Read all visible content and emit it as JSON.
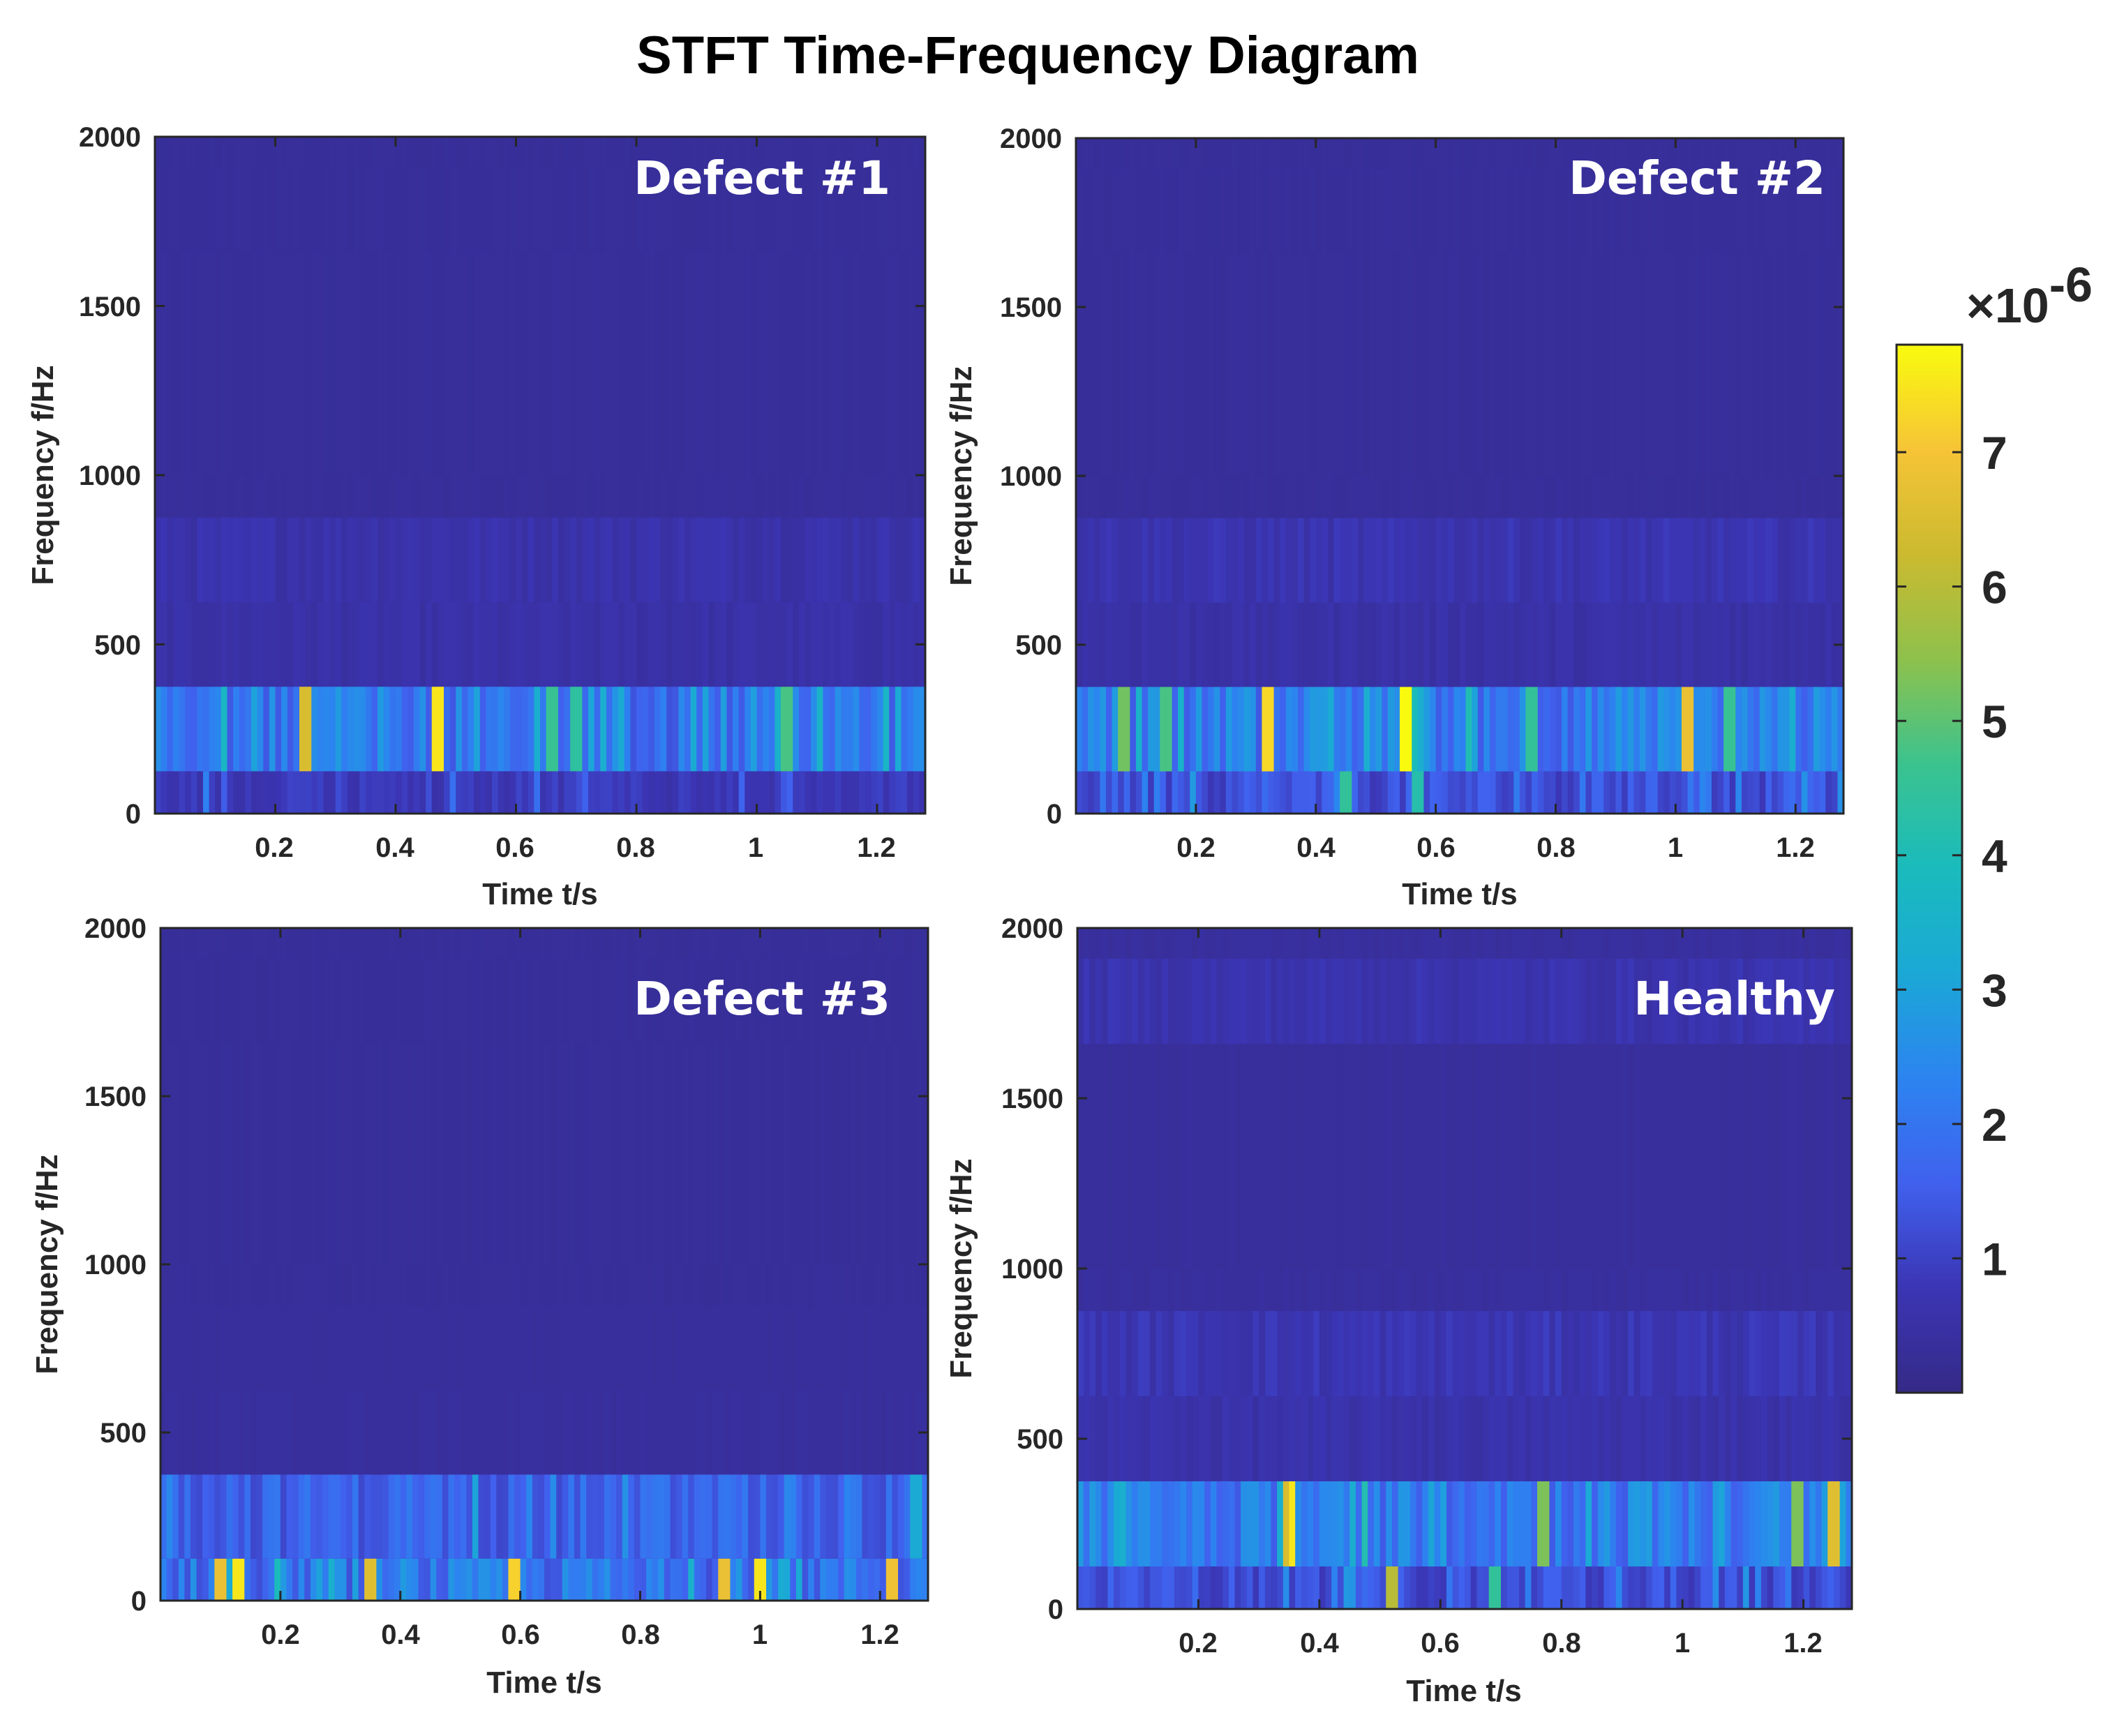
{
  "title": "STFT Time-Frequency Diagram",
  "chart_data": [
    {
      "type": "heatmap",
      "panel_label": "Defect #1",
      "xlabel": "Time t/s",
      "ylabel": "Frequency f/Hz",
      "xlim": [
        0,
        1.28
      ],
      "ylim": [
        0,
        2000
      ],
      "xticks": [
        "0.2",
        "0.4",
        "0.6",
        "0.8",
        "1",
        "1.2"
      ],
      "yticks": [
        "0",
        "500",
        "1000",
        "1500",
        "2000"
      ],
      "hot_spots": [
        {
          "t": 0.25,
          "band": 1,
          "level": 6.5
        },
        {
          "t": 0.47,
          "band": 1,
          "level": 7.5
        },
        {
          "t": 0.465,
          "band": 1,
          "level": 5.5
        },
        {
          "t": 0.66,
          "band": 1,
          "level": 4.6
        },
        {
          "t": 0.7,
          "band": 1,
          "level": 4.4
        },
        {
          "t": 1.05,
          "band": 1,
          "level": 4.8
        }
      ]
    },
    {
      "type": "heatmap",
      "panel_label": "Defect #2",
      "xlabel": "Time t/s",
      "ylabel": "Frequency f/Hz",
      "xlim": [
        0,
        1.28
      ],
      "ylim": [
        0,
        2000
      ],
      "xticks": [
        "0.2",
        "0.4",
        "0.6",
        "0.8",
        "1",
        "1.2"
      ],
      "yticks": [
        "0",
        "500",
        "1000",
        "1500",
        "2000"
      ],
      "hot_spots": [
        {
          "t": 0.32,
          "band": 1,
          "level": 7.3
        },
        {
          "t": 0.55,
          "band": 1,
          "level": 7.8
        },
        {
          "t": 0.08,
          "band": 1,
          "level": 5.2
        },
        {
          "t": 0.15,
          "band": 1,
          "level": 4.8
        },
        {
          "t": 0.76,
          "band": 1,
          "level": 4.5
        },
        {
          "t": 1.02,
          "band": 1,
          "level": 6.8
        },
        {
          "t": 1.09,
          "band": 1,
          "level": 4.6
        },
        {
          "t": 0.45,
          "band": 0,
          "level": 4.5
        },
        {
          "t": 0.57,
          "band": 0,
          "level": 4.2
        }
      ]
    },
    {
      "type": "heatmap",
      "panel_label": "Defect #3",
      "xlabel": "Time t/s",
      "ylabel": "Frequency f/Hz",
      "xlim": [
        0,
        1.28
      ],
      "ylim": [
        0,
        2000
      ],
      "xticks": [
        "0.2",
        "0.4",
        "0.6",
        "0.8",
        "1",
        "1.2"
      ],
      "yticks": [
        "0",
        "500",
        "1000",
        "1500",
        "2000"
      ],
      "hot_spots": [
        {
          "t": 0.1,
          "band": 0,
          "level": 6.8
        },
        {
          "t": 0.13,
          "band": 0,
          "level": 7.5
        },
        {
          "t": 0.35,
          "band": 0,
          "level": 6.6
        },
        {
          "t": 0.59,
          "band": 0,
          "level": 7.2
        },
        {
          "t": 0.94,
          "band": 0,
          "level": 6.8
        },
        {
          "t": 1.0,
          "band": 0,
          "level": 7.5
        },
        {
          "t": 1.22,
          "band": 0,
          "level": 6.9
        },
        {
          "t": 1.26,
          "band": 1,
          "level": 3.2
        }
      ]
    },
    {
      "type": "heatmap",
      "panel_label": "Healthy",
      "xlabel": "Time t/s",
      "ylabel": "Frequency f/Hz",
      "xlim": [
        0,
        1.28
      ],
      "ylim": [
        0,
        2000
      ],
      "xticks": [
        "0.2",
        "0.4",
        "0.6",
        "0.8",
        "1",
        "1.2"
      ],
      "yticks": [
        "0",
        "500",
        "1000",
        "1500",
        "2000"
      ],
      "hot_spots": [
        {
          "t": 0.355,
          "band": 1,
          "level": 7.5
        },
        {
          "t": 0.345,
          "band": 1,
          "level": 6.5
        },
        {
          "t": 0.77,
          "band": 1,
          "level": 5.3
        },
        {
          "t": 1.19,
          "band": 1,
          "level": 5.3
        },
        {
          "t": 1.25,
          "band": 1,
          "level": 6.6
        },
        {
          "t": 0.52,
          "band": 0,
          "level": 6.0
        },
        {
          "t": 0.69,
          "band": 0,
          "level": 4.5
        }
      ]
    }
  ],
  "colorbar": {
    "multiplier": "×10",
    "exponent": "-6",
    "ticks": [
      "1",
      "2",
      "3",
      "4",
      "5",
      "6",
      "7"
    ],
    "range": [
      0,
      7.8
    ]
  },
  "colors": {
    "background": "#3e26a8",
    "parula": [
      "#352a87",
      "#3b35b4",
      "#4061ee",
      "#2c84f0",
      "#1ba8d6",
      "#1abbbd",
      "#3bc38e",
      "#8ec14c",
      "#cbba2f",
      "#f6c436",
      "#f9fb0e"
    ]
  }
}
